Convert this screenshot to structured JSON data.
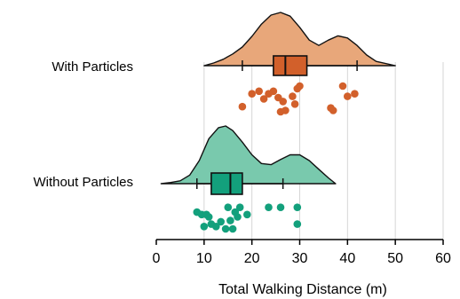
{
  "chart_data": {
    "type": "raincloud",
    "xlabel": "Total Walking Distance (m)",
    "xlim": [
      0,
      60
    ],
    "xticks": [
      0,
      10,
      20,
      30,
      40,
      50,
      60
    ],
    "xtick_labels": [
      "0",
      "10",
      "20",
      "30",
      "40",
      "50",
      "60"
    ],
    "grid": "vertical",
    "series": [
      {
        "name": "With Particles",
        "color": "#E8A77A",
        "box_color": "#D2602B",
        "point_color": "#D2602B",
        "density": [
          [
            10,
            0.0
          ],
          [
            12,
            0.05
          ],
          [
            14,
            0.12
          ],
          [
            16,
            0.22
          ],
          [
            18,
            0.35
          ],
          [
            20,
            0.55
          ],
          [
            22,
            0.78
          ],
          [
            24,
            0.95
          ],
          [
            26,
            1.0
          ],
          [
            28,
            0.93
          ],
          [
            30,
            0.72
          ],
          [
            32,
            0.48
          ],
          [
            34,
            0.38
          ],
          [
            36,
            0.48
          ],
          [
            38,
            0.56
          ],
          [
            40,
            0.52
          ],
          [
            42,
            0.38
          ],
          [
            44,
            0.2
          ],
          [
            46,
            0.08
          ],
          [
            50,
            0.0
          ]
        ],
        "whisker_low": 18,
        "q1": 24.5,
        "median": 27,
        "q3": 31.5,
        "whisker_high": 42,
        "points": [
          [
            18.0,
            0.8
          ],
          [
            20.0,
            0.3
          ],
          [
            21.5,
            0.2
          ],
          [
            22.5,
            0.5
          ],
          [
            23.5,
            0.3
          ],
          [
            24.5,
            0.2
          ],
          [
            25.5,
            0.45
          ],
          [
            26.0,
            1.0
          ],
          [
            26.5,
            0.6
          ],
          [
            27.0,
            0.95
          ],
          [
            28.5,
            0.4
          ],
          [
            29.0,
            0.7
          ],
          [
            29.5,
            0.1
          ],
          [
            30.0,
            0.0
          ],
          [
            36.5,
            0.85
          ],
          [
            37.0,
            0.95
          ],
          [
            39.0,
            0.0
          ],
          [
            40.0,
            0.4
          ],
          [
            41.5,
            0.3
          ]
        ]
      },
      {
        "name": "Without Particles",
        "color": "#79C9AD",
        "box_color": "#13A07C",
        "point_color": "#13A07C",
        "density": [
          [
            1,
            0.0
          ],
          [
            3,
            0.02
          ],
          [
            5,
            0.05
          ],
          [
            7,
            0.15
          ],
          [
            9,
            0.4
          ],
          [
            11,
            0.78
          ],
          [
            13,
            0.97
          ],
          [
            14.5,
            1.0
          ],
          [
            16,
            0.92
          ],
          [
            18,
            0.72
          ],
          [
            20,
            0.5
          ],
          [
            22,
            0.35
          ],
          [
            24,
            0.33
          ],
          [
            26,
            0.42
          ],
          [
            28,
            0.5
          ],
          [
            30,
            0.5
          ],
          [
            32,
            0.4
          ],
          [
            34,
            0.25
          ],
          [
            36,
            0.1
          ],
          [
            37.5,
            0.0
          ]
        ],
        "whisker_low": 8.5,
        "q1": 11.5,
        "median": 15.5,
        "q3": 18,
        "whisker_high": 26.5,
        "points": [
          [
            8.5,
            0.3
          ],
          [
            9.5,
            0.4
          ],
          [
            10.0,
            0.9
          ],
          [
            10.5,
            0.4
          ],
          [
            11.0,
            0.5
          ],
          [
            11.5,
            0.8
          ],
          [
            12.5,
            0.9
          ],
          [
            13.5,
            0.7
          ],
          [
            14.5,
            1.0
          ],
          [
            15.0,
            0.1
          ],
          [
            15.5,
            0.65
          ],
          [
            16.0,
            1.0
          ],
          [
            16.5,
            0.3
          ],
          [
            17.0,
            0.5
          ],
          [
            17.5,
            0.1
          ],
          [
            19.0,
            0.4
          ],
          [
            23.5,
            0.1
          ],
          [
            26.0,
            0.1
          ],
          [
            29.5,
            0.1
          ],
          [
            29.5,
            0.8
          ]
        ]
      }
    ]
  }
}
